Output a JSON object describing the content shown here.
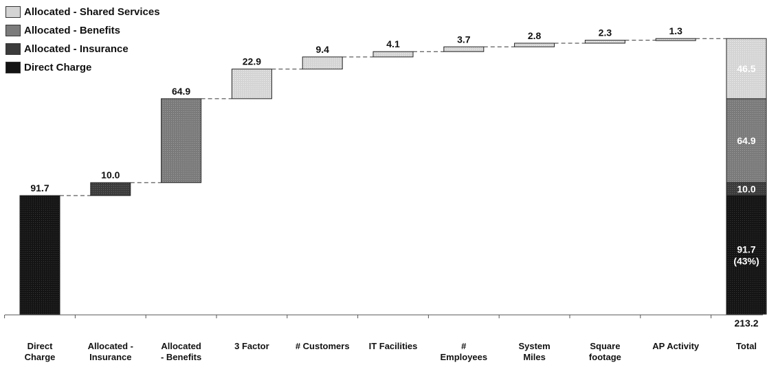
{
  "chart_data": {
    "type": "bar",
    "subtype": "waterfall",
    "categories": [
      "Direct\nCharge",
      "Allocated -\nInsurance",
      "Allocated\n- Benefits",
      "3 Factor",
      "# Customers",
      "IT Facilities",
      "#\nEmployees",
      "System\nMiles",
      "Square\nfootage",
      "AP Activity",
      "Total"
    ],
    "values": [
      91.7,
      10.0,
      64.9,
      22.9,
      9.4,
      4.1,
      3.7,
      2.8,
      2.3,
      1.3,
      213.2
    ],
    "value_labels": [
      "91.7",
      "10.0",
      "64.9",
      "22.9",
      "9.4",
      "4.1",
      "3.7",
      "2.8",
      "2.3",
      "1.3",
      "213.2"
    ],
    "segment_type": [
      "direct",
      "insurance",
      "benefits",
      "shared",
      "shared",
      "shared",
      "shared",
      "shared",
      "shared",
      "shared",
      "total"
    ],
    "total_stack": [
      {
        "series": "Direct Charge",
        "value": 91.7,
        "label": "91.7\n(43%)"
      },
      {
        "series": "Allocated - Insurance",
        "value": 10.0,
        "label": "10.0"
      },
      {
        "series": "Allocated - Benefits",
        "value": 64.9,
        "label": "64.9"
      },
      {
        "series": "Allocated - Shared Services",
        "value": 46.5,
        "label": "46.5"
      }
    ],
    "legend": [
      {
        "name": "Allocated - Shared Services",
        "color": "#d4d4d4"
      },
      {
        "name": "Allocated - Benefits",
        "color": "#7c7c7c"
      },
      {
        "name": "Allocated - Insurance",
        "color": "#3c3c3c"
      },
      {
        "name": "Direct Charge",
        "color": "#141414"
      }
    ],
    "legend_position": "top-left",
    "ylim": [
      0,
      213.2
    ],
    "grid": false,
    "connector_lines": "dashed"
  }
}
